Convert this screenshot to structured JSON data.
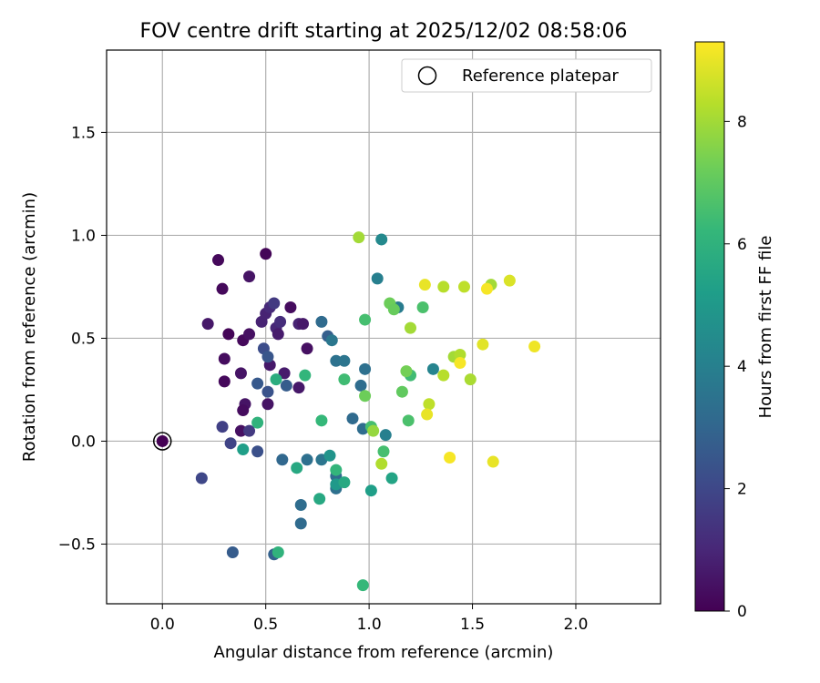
{
  "chart_data": {
    "type": "scatter",
    "title": "FOV centre drift starting at 2025/12/02 08:58:06",
    "xlabel": "Angular distance from reference (arcmin)",
    "ylabel": "Rotation from reference (arcmin)",
    "xlim": [
      -0.27,
      2.41
    ],
    "ylim": [
      -0.79,
      1.9
    ],
    "xticks": [
      0.0,
      0.5,
      1.0,
      1.5,
      2.0
    ],
    "xtick_labels": [
      "0.0",
      "0.5",
      "1.0",
      "1.5",
      "2.0"
    ],
    "yticks": [
      -0.5,
      0.0,
      0.5,
      1.0,
      1.5
    ],
    "ytick_labels": [
      "−0.5",
      "0.0",
      "0.5",
      "1.0",
      "1.5"
    ],
    "grid": true,
    "legend": {
      "position": "top-right",
      "label": "Reference platepar"
    },
    "colorbar": {
      "label": "Hours from first FF file",
      "range": [
        0,
        9.3
      ],
      "ticks": [
        0,
        2,
        4,
        6,
        8
      ],
      "tick_labels": [
        "0",
        "2",
        "4",
        "6",
        "8"
      ],
      "colormap": "viridis"
    },
    "reference_point": {
      "x": 0.0,
      "y": 0.0
    },
    "points": [
      {
        "x": 0.27,
        "y": 0.88,
        "h": 0.2
      },
      {
        "x": 0.5,
        "y": 0.91,
        "h": 0.1
      },
      {
        "x": 0.29,
        "y": 0.74,
        "h": 0.2
      },
      {
        "x": 0.42,
        "y": 0.8,
        "h": 0.5
      },
      {
        "x": 0.22,
        "y": 0.57,
        "h": 0.6
      },
      {
        "x": 0.32,
        "y": 0.52,
        "h": 0.1
      },
      {
        "x": 0.39,
        "y": 0.49,
        "h": 0.2
      },
      {
        "x": 0.42,
        "y": 0.52,
        "h": 0.4
      },
      {
        "x": 0.3,
        "y": 0.4,
        "h": 0.3
      },
      {
        "x": 0.38,
        "y": 0.33,
        "h": 0.5
      },
      {
        "x": 0.3,
        "y": 0.29,
        "h": 0.2
      },
      {
        "x": 0.4,
        "y": 0.18,
        "h": 0.5
      },
      {
        "x": 0.39,
        "y": 0.15,
        "h": 0.3
      },
      {
        "x": 0.38,
        "y": 0.05,
        "h": 0.4
      },
      {
        "x": 0.48,
        "y": 0.58,
        "h": 0.9
      },
      {
        "x": 0.5,
        "y": 0.62,
        "h": 0.9
      },
      {
        "x": 0.52,
        "y": 0.65,
        "h": 1.1
      },
      {
        "x": 0.55,
        "y": 0.55,
        "h": 1.0
      },
      {
        "x": 0.57,
        "y": 0.58,
        "h": 1.2
      },
      {
        "x": 0.56,
        "y": 0.52,
        "h": 0.7
      },
      {
        "x": 0.62,
        "y": 0.65,
        "h": 0.3
      },
      {
        "x": 0.66,
        "y": 0.57,
        "h": 0.9
      },
      {
        "x": 0.68,
        "y": 0.57,
        "h": 0.6
      },
      {
        "x": 0.7,
        "y": 0.45,
        "h": 0.4
      },
      {
        "x": 0.52,
        "y": 0.37,
        "h": 0.6
      },
      {
        "x": 0.59,
        "y": 0.33,
        "h": 0.7
      },
      {
        "x": 0.66,
        "y": 0.26,
        "h": 0.6
      },
      {
        "x": 0.51,
        "y": 0.18,
        "h": 0.5
      },
      {
        "x": 0.54,
        "y": 0.67,
        "h": 1.6
      },
      {
        "x": 0.49,
        "y": 0.45,
        "h": 2.2
      },
      {
        "x": 0.51,
        "y": 0.41,
        "h": 2.5
      },
      {
        "x": 0.46,
        "y": 0.28,
        "h": 2.6
      },
      {
        "x": 0.51,
        "y": 0.24,
        "h": 2.4
      },
      {
        "x": 0.6,
        "y": 0.27,
        "h": 2.7
      },
      {
        "x": 0.29,
        "y": 0.07,
        "h": 1.8
      },
      {
        "x": 0.42,
        "y": 0.05,
        "h": 1.6
      },
      {
        "x": 0.33,
        "y": -0.01,
        "h": 1.9
      },
      {
        "x": 0.46,
        "y": -0.05,
        "h": 2.3
      },
      {
        "x": 0.19,
        "y": -0.18,
        "h": 2.0
      },
      {
        "x": 0.34,
        "y": -0.54,
        "h": 2.7
      },
      {
        "x": 0.54,
        "y": -0.55,
        "h": 2.9
      },
      {
        "x": 0.58,
        "y": -0.09,
        "h": 3.1
      },
      {
        "x": 0.67,
        "y": -0.31,
        "h": 3.3
      },
      {
        "x": 0.67,
        "y": -0.4,
        "h": 3.2
      },
      {
        "x": 0.7,
        "y": -0.09,
        "h": 3.4
      },
      {
        "x": 0.77,
        "y": -0.09,
        "h": 3.6
      },
      {
        "x": 0.77,
        "y": 0.58,
        "h": 3.2
      },
      {
        "x": 0.8,
        "y": 0.51,
        "h": 2.8
      },
      {
        "x": 0.84,
        "y": 0.39,
        "h": 3.5
      },
      {
        "x": 0.88,
        "y": 0.39,
        "h": 3.6
      },
      {
        "x": 0.82,
        "y": 0.49,
        "h": 3.7
      },
      {
        "x": 0.92,
        "y": 0.11,
        "h": 3.2
      },
      {
        "x": 0.96,
        "y": 0.27,
        "h": 3.3
      },
      {
        "x": 0.98,
        "y": 0.35,
        "h": 3.4
      },
      {
        "x": 0.97,
        "y": 0.06,
        "h": 3.3
      },
      {
        "x": 0.84,
        "y": -0.17,
        "h": 3.3
      },
      {
        "x": 0.84,
        "y": -0.23,
        "h": 3.4
      },
      {
        "x": 1.04,
        "y": 0.79,
        "h": 4.0
      },
      {
        "x": 1.06,
        "y": 0.98,
        "h": 4.4
      },
      {
        "x": 1.14,
        "y": 0.65,
        "h": 3.9
      },
      {
        "x": 1.08,
        "y": 0.03,
        "h": 4.0
      },
      {
        "x": 1.31,
        "y": 0.35,
        "h": 4.2
      },
      {
        "x": 0.81,
        "y": -0.07,
        "h": 4.8
      },
      {
        "x": 0.84,
        "y": -0.21,
        "h": 5.0
      },
      {
        "x": 0.88,
        "y": -0.2,
        "h": 5.6
      },
      {
        "x": 1.01,
        "y": -0.24,
        "h": 5.2
      },
      {
        "x": 1.11,
        "y": -0.18,
        "h": 5.4
      },
      {
        "x": 0.76,
        "y": -0.28,
        "h": 5.6
      },
      {
        "x": 0.65,
        "y": -0.13,
        "h": 5.6
      },
      {
        "x": 0.39,
        "y": -0.04,
        "h": 5.2
      },
      {
        "x": 0.46,
        "y": 0.09,
        "h": 6.0
      },
      {
        "x": 0.55,
        "y": 0.3,
        "h": 5.8
      },
      {
        "x": 0.69,
        "y": 0.32,
        "h": 6.1
      },
      {
        "x": 0.77,
        "y": 0.1,
        "h": 6.2
      },
      {
        "x": 0.88,
        "y": 0.3,
        "h": 6.4
      },
      {
        "x": 0.98,
        "y": 0.59,
        "h": 6.5
      },
      {
        "x": 0.56,
        "y": -0.54,
        "h": 6.0
      },
      {
        "x": 0.97,
        "y": -0.7,
        "h": 6.2
      },
      {
        "x": 0.84,
        "y": -0.14,
        "h": 6.1
      },
      {
        "x": 1.01,
        "y": 0.07,
        "h": 6.5
      },
      {
        "x": 1.19,
        "y": 0.1,
        "h": 6.6
      },
      {
        "x": 1.2,
        "y": 0.32,
        "h": 6.4
      },
      {
        "x": 1.26,
        "y": 0.65,
        "h": 6.6
      },
      {
        "x": 1.07,
        "y": -0.05,
        "h": 6.5
      },
      {
        "x": 0.98,
        "y": 0.22,
        "h": 7.2
      },
      {
        "x": 1.1,
        "y": 0.67,
        "h": 7.2
      },
      {
        "x": 1.12,
        "y": 0.64,
        "h": 7.1
      },
      {
        "x": 1.16,
        "y": 0.24,
        "h": 7.0
      },
      {
        "x": 1.18,
        "y": 0.34,
        "h": 7.3
      },
      {
        "x": 1.02,
        "y": 0.05,
        "h": 7.8
      },
      {
        "x": 0.95,
        "y": 0.99,
        "h": 8.0
      },
      {
        "x": 1.2,
        "y": 0.55,
        "h": 8.0
      },
      {
        "x": 1.06,
        "y": -0.11,
        "h": 8.2
      },
      {
        "x": 1.29,
        "y": 0.18,
        "h": 8.4
      },
      {
        "x": 1.36,
        "y": 0.32,
        "h": 8.3
      },
      {
        "x": 1.36,
        "y": 0.75,
        "h": 8.3
      },
      {
        "x": 1.41,
        "y": 0.41,
        "h": 8.0
      },
      {
        "x": 1.44,
        "y": 0.42,
        "h": 8.2
      },
      {
        "x": 1.46,
        "y": 0.75,
        "h": 8.4
      },
      {
        "x": 1.49,
        "y": 0.3,
        "h": 8.1
      },
      {
        "x": 1.59,
        "y": 0.76,
        "h": 8.0
      },
      {
        "x": 1.27,
        "y": 0.76,
        "h": 9.0
      },
      {
        "x": 1.28,
        "y": 0.13,
        "h": 9.0
      },
      {
        "x": 1.39,
        "y": -0.08,
        "h": 9.2
      },
      {
        "x": 1.44,
        "y": 0.38,
        "h": 9.2
      },
      {
        "x": 1.55,
        "y": 0.47,
        "h": 8.9
      },
      {
        "x": 1.57,
        "y": 0.74,
        "h": 9.2
      },
      {
        "x": 1.6,
        "y": -0.1,
        "h": 9.0
      },
      {
        "x": 1.68,
        "y": 0.78,
        "h": 8.8
      },
      {
        "x": 1.8,
        "y": 0.46,
        "h": 9.1
      }
    ]
  }
}
